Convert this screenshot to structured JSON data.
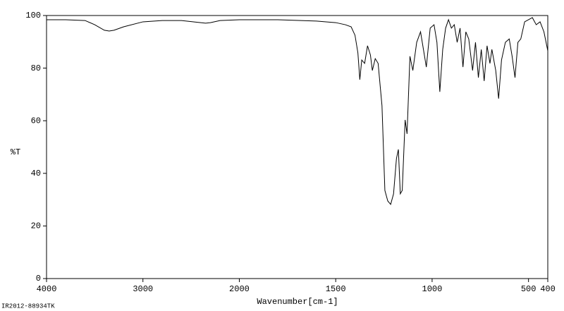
{
  "chart_data": {
    "type": "line",
    "x_label": "Wavenumber[cm-1]",
    "y_label": "%T",
    "annotation": "IR2012-88934TK",
    "color": "#000000",
    "x": [
      4000,
      3800,
      3600,
      3500,
      3400,
      3350,
      3300,
      3200,
      3000,
      2800,
      2600,
      2400,
      2350,
      2300,
      2200,
      2000,
      1800,
      1600,
      1500,
      1450,
      1420,
      1400,
      1385,
      1375,
      1365,
      1350,
      1335,
      1320,
      1310,
      1295,
      1280,
      1260,
      1245,
      1230,
      1215,
      1200,
      1185,
      1175,
      1165,
      1155,
      1140,
      1130,
      1115,
      1100,
      1080,
      1060,
      1045,
      1030,
      1010,
      990,
      975,
      960,
      945,
      930,
      915,
      900,
      885,
      870,
      855,
      840,
      825,
      810,
      790,
      775,
      760,
      745,
      730,
      715,
      700,
      690,
      670,
      655,
      640,
      620,
      600,
      585,
      570,
      555,
      540,
      520,
      500,
      480,
      460,
      440,
      420,
      400
    ],
    "values": [
      98.4,
      98.4,
      98.1,
      96.5,
      94.4,
      94.1,
      94.4,
      95.7,
      97.6,
      98.1,
      98.1,
      97.3,
      97.1,
      97.3,
      98.1,
      98.4,
      98.4,
      97.9,
      97.3,
      96.5,
      95.7,
      92.5,
      85.8,
      75.6,
      83.1,
      81.8,
      88.5,
      85,
      79.1,
      83.6,
      81.8,
      65.7,
      33.5,
      29.5,
      28.2,
      32.2,
      45.6,
      49.1,
      32.2,
      33.5,
      60.3,
      55,
      84.5,
      79.1,
      89.8,
      93.8,
      87.1,
      80.4,
      95.2,
      96.5,
      89.8,
      71,
      87.1,
      95.2,
      98.4,
      95.2,
      96.5,
      89.8,
      95.2,
      80.4,
      93.8,
      91.1,
      79.1,
      89.8,
      76.4,
      87.1,
      75.1,
      88.5,
      81.8,
      87.1,
      79.1,
      68.4,
      83.1,
      89.8,
      91.1,
      84.5,
      76.4,
      89.8,
      91.1,
      97.6,
      98.4,
      99.2,
      96.5,
      97.6,
      93.8,
      86.6
    ],
    "xlim": [
      4000,
      400
    ],
    "xticks": [
      4000,
      3000,
      2000,
      1500,
      1000,
      500,
      400
    ],
    "x_scale_break": 2000,
    "ylim": [
      0,
      100
    ],
    "yticks": [
      0,
      20,
      40,
      60,
      80,
      100
    ],
    "grid": false
  }
}
